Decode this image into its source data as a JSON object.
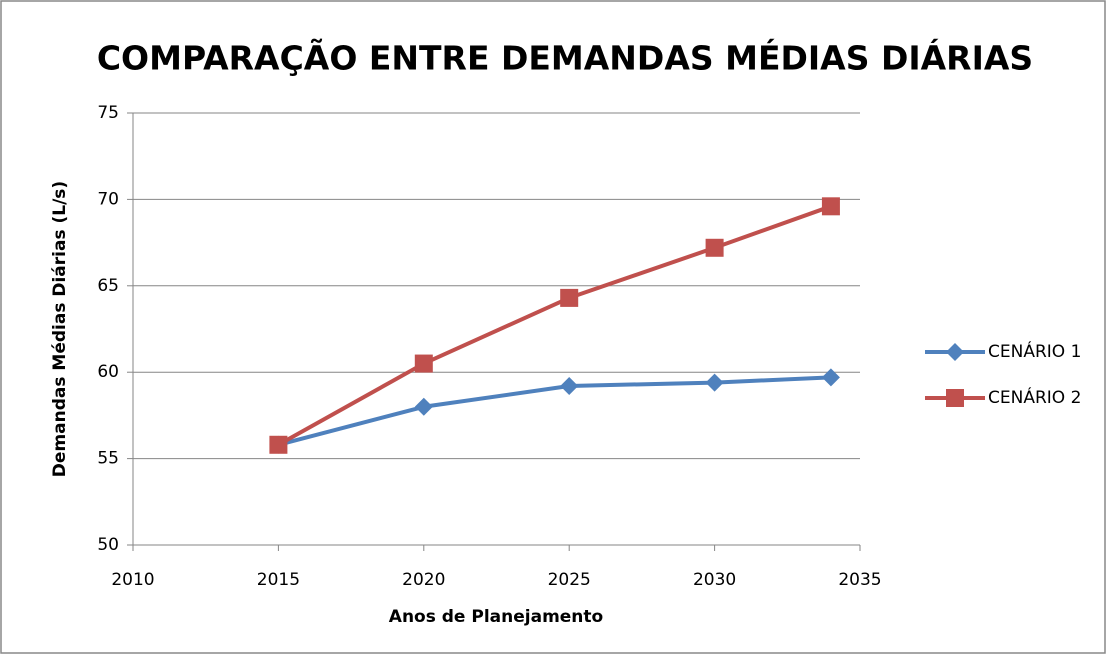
{
  "chart_data": {
    "type": "line",
    "title": "COMPARAÇÃO ENTRE DEMANDAS MÉDIAS DIÁRIAS",
    "xlabel": "Anos de Planejamento",
    "ylabel": "Demandas Médias Diárias (L/s)",
    "x": [
      2015,
      2020,
      2025,
      2030,
      2034
    ],
    "series": [
      {
        "name": "CENÁRIO 1",
        "color": "#4f81bd",
        "marker": "diamond",
        "values": [
          55.8,
          58.0,
          59.2,
          59.4,
          59.7
        ]
      },
      {
        "name": "CENÁRIO 2",
        "color": "#c0504d",
        "marker": "square",
        "values": [
          55.8,
          60.5,
          64.3,
          67.2,
          69.6
        ]
      }
    ],
    "xlim": [
      2010,
      2035
    ],
    "xticks": [
      2010,
      2015,
      2020,
      2025,
      2030,
      2035
    ],
    "ylim": [
      50,
      75
    ],
    "yticks": [
      50,
      55,
      60,
      65,
      70,
      75
    ],
    "grid": true,
    "legend": "right"
  }
}
